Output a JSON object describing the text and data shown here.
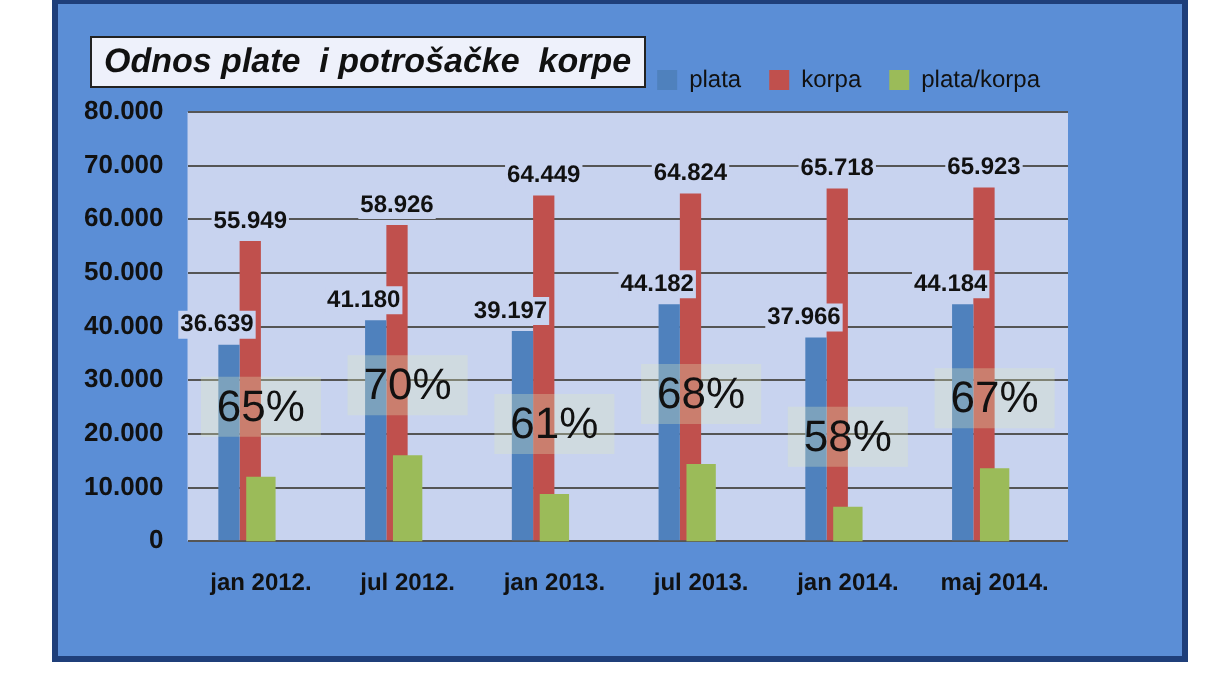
{
  "chart_data": {
    "type": "bar",
    "title": "Odnos plate  i potrošačke  korpe",
    "categories": [
      "jan 2012.",
      "jul 2012.",
      "jan 2013.",
      "jul 2013.",
      "jan 2014.",
      "maj 2014."
    ],
    "series": [
      {
        "name": "plata",
        "color": "#4f81bd",
        "values": [
          36639,
          41180,
          39197,
          44182,
          37966,
          44184
        ],
        "value_labels": [
          "36.639",
          "41.180",
          "39.197",
          "44.182",
          "37.966",
          "44.184"
        ]
      },
      {
        "name": "korpa",
        "color": "#c0504d",
        "values": [
          55949,
          58926,
          64449,
          64824,
          65718,
          65923
        ],
        "value_labels": [
          "55.949",
          "58.926",
          "64.449",
          "64.824",
          "65.718",
          "65.923"
        ]
      },
      {
        "name": "plata/korpa",
        "color": "#9bbb59",
        "axis": "y2",
        "values": [
          65,
          70,
          61,
          68,
          58,
          67
        ],
        "value_labels": [
          "65%",
          "70%",
          "61%",
          "68%",
          "58%",
          "67%"
        ]
      }
    ],
    "ylim": [
      0,
      80000
    ],
    "yticks": [
      {
        "value": 0,
        "label": "0"
      },
      {
        "value": 10000,
        "label": "10.000"
      },
      {
        "value": 20000,
        "label": "20.000"
      },
      {
        "value": 30000,
        "label": "30.000"
      },
      {
        "value": 40000,
        "label": "40.000"
      },
      {
        "value": 50000,
        "label": "50.000"
      },
      {
        "value": 60000,
        "label": "60.000"
      },
      {
        "value": 70000,
        "label": "70.000"
      },
      {
        "value": 80000,
        "label": "80.000"
      }
    ],
    "y2lim": [
      50,
      150
    ],
    "tick_labels": "xy",
    "grid": "y",
    "legend": "top right"
  }
}
